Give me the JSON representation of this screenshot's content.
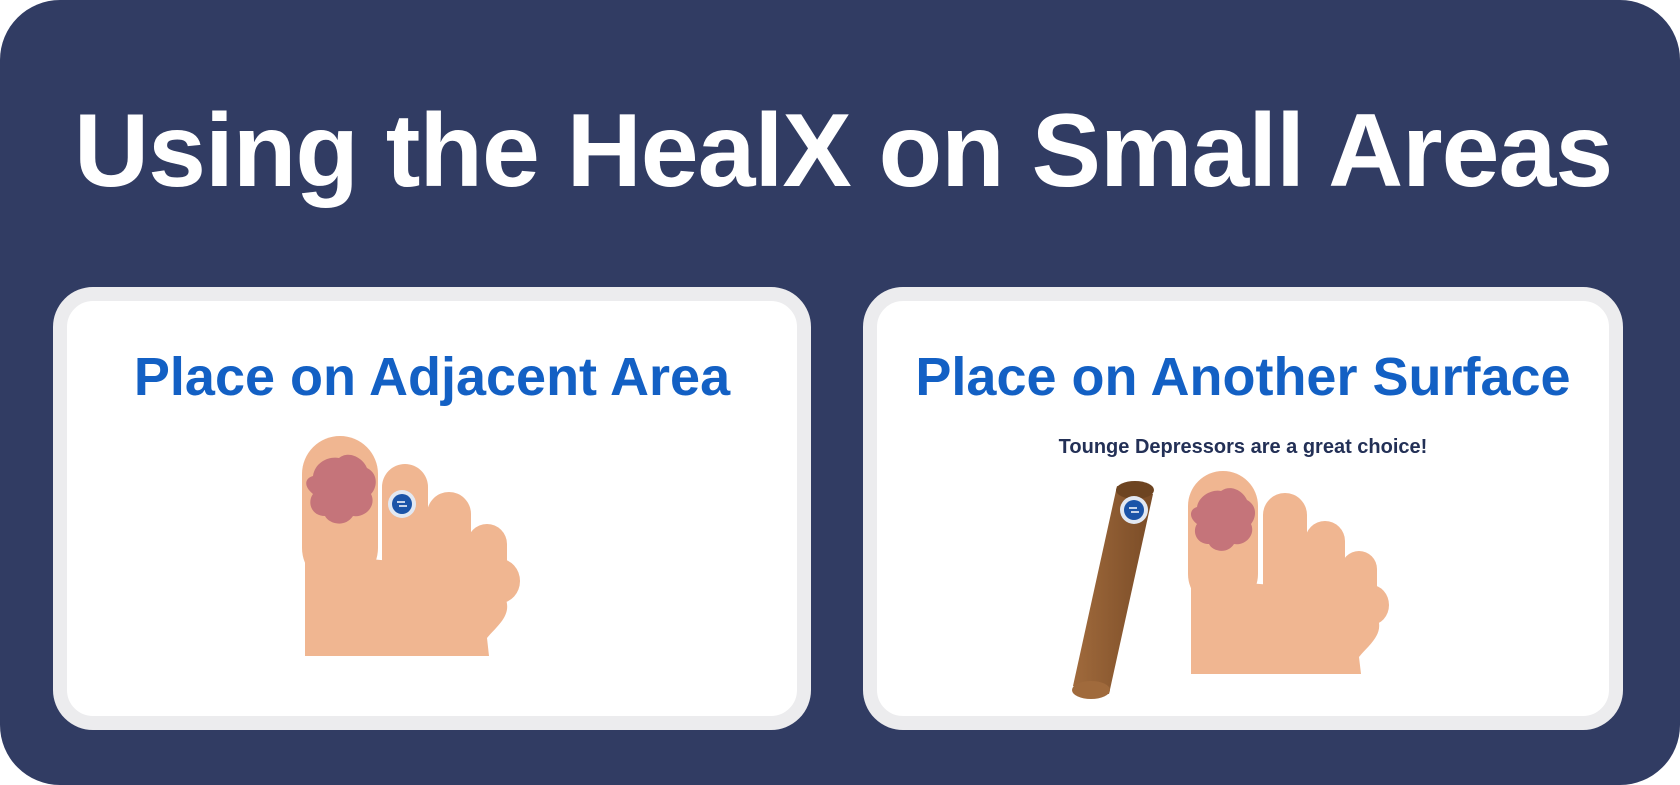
{
  "title": "Using the HealX on Small Areas",
  "cards": [
    {
      "title": "Place on Adjacent Area",
      "illustration": "foot-with-device-on-adjacent-toe"
    },
    {
      "title": "Place on Another Surface",
      "subtitle": "Tounge Depressors are a great choice!",
      "illustration": "tongue-depressor-with-device-next-to-foot"
    }
  ],
  "colors": {
    "background": "#313c63",
    "card": "#ffffff",
    "card_border": "#ececee",
    "heading_text": "#ffffff",
    "card_title": "#1360c4",
    "subtitle": "#233056",
    "skin": "#f0b691",
    "wound": "#c5747a",
    "device": "#1b54a8",
    "stick": "#8d5b33"
  }
}
